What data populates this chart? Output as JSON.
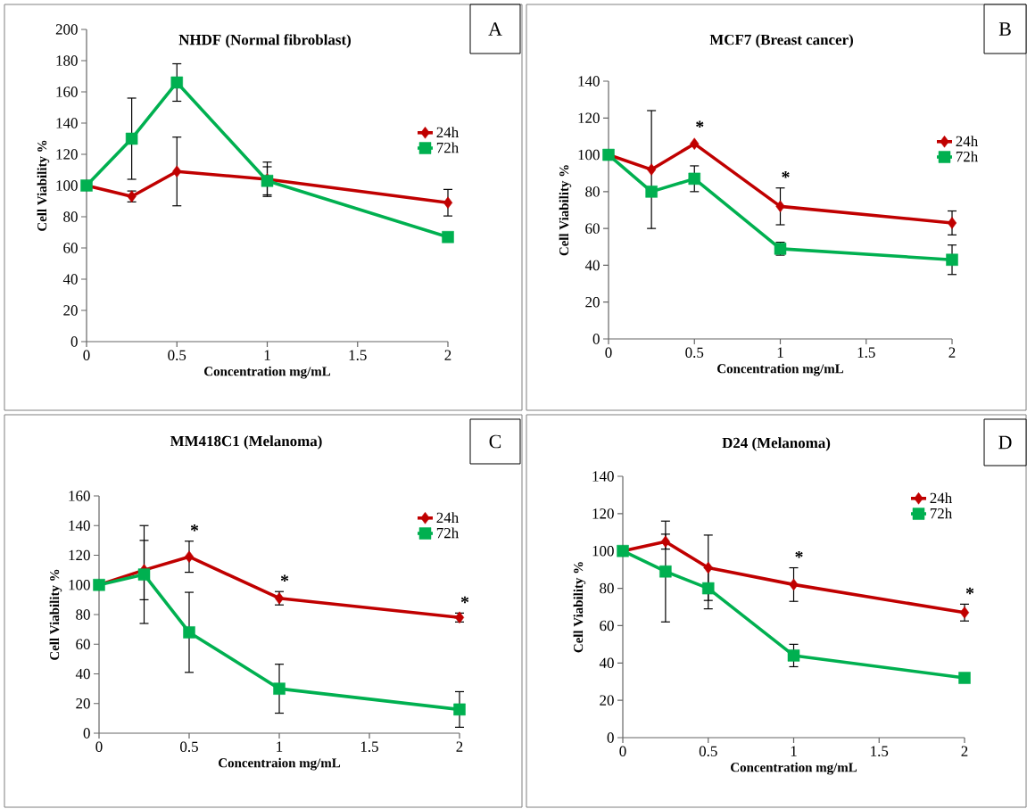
{
  "chart_data": [
    {
      "type": "line",
      "title": "NHDF (Normal fibroblast)",
      "xlabel": "Concentration mg/mL",
      "ylabel": "Cell Viability %",
      "x": [
        0,
        0.25,
        0.5,
        1,
        2
      ],
      "xlim": [
        0,
        2
      ],
      "xticks": [
        0,
        0.5,
        1,
        1.5,
        2
      ],
      "ylim": [
        0,
        200
      ],
      "yticks": [
        0,
        20,
        40,
        60,
        80,
        100,
        120,
        140,
        160,
        180,
        200
      ],
      "legend": "right",
      "grid": false,
      "series": [
        {
          "name": "24h",
          "color": "#c00000",
          "marker": "diamond",
          "values": [
            100,
            93,
            109,
            104,
            89
          ],
          "errors": [
            null,
            3.5,
            22,
            11,
            8.5
          ]
        },
        {
          "name": "72h",
          "color": "#00b050",
          "marker": "square",
          "values": [
            100,
            130,
            166,
            103,
            67
          ],
          "errors": [
            null,
            26,
            12,
            9,
            null
          ]
        }
      ],
      "annotations": [
        "A"
      ]
    },
    {
      "type": "line",
      "title": "MCF7 (Breast cancer)",
      "xlabel": "Concentration mg/mL",
      "ylabel": "Cell Viability %",
      "x": [
        0,
        0.25,
        0.5,
        1,
        2
      ],
      "xlim": [
        0,
        2
      ],
      "xticks": [
        0,
        0.5,
        1,
        1.5,
        2
      ],
      "ylim": [
        0,
        140
      ],
      "yticks": [
        0,
        20,
        40,
        60,
        80,
        100,
        120,
        140
      ],
      "legend": "right",
      "grid": false,
      "series": [
        {
          "name": "24h",
          "color": "#c00000",
          "marker": "diamond",
          "values": [
            100,
            92,
            106,
            72,
            63
          ],
          "errors": [
            null,
            32,
            null,
            10,
            6.5
          ]
        },
        {
          "name": "72h",
          "color": "#00b050",
          "marker": "square",
          "values": [
            100,
            80,
            87,
            49,
            43
          ],
          "errors": [
            null,
            null,
            7,
            3.5,
            8
          ]
        }
      ],
      "annotations": [
        "B",
        {
          "text": "*",
          "x": 0.5,
          "y": 106
        },
        {
          "text": "*",
          "x": 1,
          "y": 72
        }
      ]
    },
    {
      "type": "line",
      "title": "MM418C1 (Melanoma)",
      "xlabel": "Concentraion mg/mL",
      "ylabel": "Cell Viability %",
      "x": [
        0,
        0.25,
        0.5,
        1,
        2
      ],
      "xlim": [
        0,
        2
      ],
      "xticks": [
        0,
        0.5,
        1,
        1.5,
        2
      ],
      "ylim": [
        0,
        160
      ],
      "yticks": [
        0,
        20,
        40,
        60,
        80,
        100,
        120,
        140,
        160
      ],
      "legend": "right",
      "grid": false,
      "series": [
        {
          "name": "24h",
          "color": "#c00000",
          "marker": "diamond",
          "values": [
            100,
            110,
            119,
            91,
            78
          ],
          "errors": [
            null,
            20,
            10.5,
            4.5,
            3
          ]
        },
        {
          "name": "72h",
          "color": "#00b050",
          "marker": "square",
          "values": [
            100,
            107,
            68,
            30,
            16
          ],
          "errors": [
            null,
            33,
            27,
            16.5,
            12
          ]
        }
      ],
      "annotations": [
        "C",
        {
          "text": "*",
          "x": 0.5,
          "y": 119
        },
        {
          "text": "*",
          "x": 1,
          "y": 91
        },
        {
          "text": "*",
          "x": 2,
          "y": 78
        }
      ]
    },
    {
      "type": "line",
      "title": "D24 (Melanoma)",
      "xlabel": "Concentration mg/mL",
      "ylabel": "Cell Viability %",
      "x": [
        0,
        0.25,
        0.5,
        1,
        2
      ],
      "xlim": [
        0,
        2
      ],
      "xticks": [
        0,
        0.5,
        1,
        1.5,
        2
      ],
      "ylim": [
        0,
        140
      ],
      "yticks": [
        0,
        20,
        40,
        60,
        80,
        100,
        120,
        140
      ],
      "legend": "right",
      "grid": false,
      "series": [
        {
          "name": "24h",
          "color": "#c00000",
          "marker": "diamond",
          "values": [
            100,
            105,
            91,
            82,
            67
          ],
          "errors": [
            null,
            4,
            17.5,
            9,
            4.5
          ]
        },
        {
          "name": "72h",
          "color": "#00b050",
          "marker": "square",
          "values": [
            100,
            89,
            80,
            44,
            32
          ],
          "errors": [
            null,
            27,
            11,
            6,
            null
          ]
        }
      ],
      "annotations": [
        "D",
        {
          "text": "*",
          "x": 1,
          "y": 82
        },
        {
          "text": "*",
          "x": 2,
          "y": 67
        }
      ]
    }
  ]
}
